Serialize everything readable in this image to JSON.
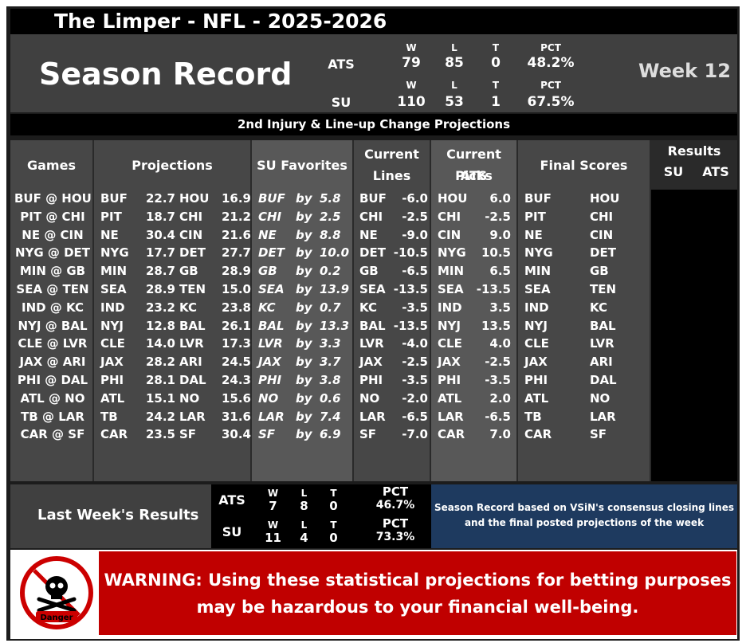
{
  "title": "The Limper - NFL - 2025-2026",
  "season": {
    "heading": "Season Record",
    "week": "Week 12",
    "ats": {
      "label": "ATS",
      "w_h": "W",
      "l_h": "L",
      "t_h": "T",
      "pct_h": "PCT",
      "w": "79",
      "l": "85",
      "t": "0",
      "pct": "48.2%"
    },
    "su": {
      "label": "SU",
      "w_h": "W",
      "l_h": "L",
      "t_h": "T",
      "pct_h": "PCT",
      "w": "110",
      "l": "53",
      "t": "1",
      "pct": "67.5%"
    }
  },
  "subtitle": "2nd Injury & Line-up Change Projections",
  "headers": {
    "games": "Games",
    "projections": "Projections",
    "su_favorites": "SU Favorites",
    "current_lines_1": "Current",
    "current_lines_2": "Lines",
    "ats_picks_1": "Current ATS",
    "ats_picks_2": "Picks",
    "final_scores": "Final Scores",
    "results": "Results",
    "results_su": "SU",
    "results_ats": "ATS"
  },
  "rows": [
    {
      "game": "BUF @ HOU",
      "p1": "BUF",
      "s1": "22.7",
      "p2": "HOU",
      "s2": "16.9",
      "fav": "BUF",
      "by": "by",
      "margin": "5.8",
      "line_team": "BUF",
      "line": "-6.0",
      "pick": "HOU",
      "pick_line": "6.0",
      "f1": "BUF",
      "f2": "HOU"
    },
    {
      "game": "PIT @ CHI",
      "p1": "PIT",
      "s1": "18.7",
      "p2": "CHI",
      "s2": "21.2",
      "fav": "CHI",
      "by": "by",
      "margin": "2.5",
      "line_team": "CHI",
      "line": "-2.5",
      "pick": "CHI",
      "pick_line": "-2.5",
      "f1": "PIT",
      "f2": "CHI"
    },
    {
      "game": "NE @ CIN",
      "p1": "NE",
      "s1": "30.4",
      "p2": "CIN",
      "s2": "21.6",
      "fav": "NE",
      "by": "by",
      "margin": "8.8",
      "line_team": "NE",
      "line": "-9.0",
      "pick": "CIN",
      "pick_line": "9.0",
      "f1": "NE",
      "f2": "CIN"
    },
    {
      "game": "NYG @ DET",
      "p1": "NYG",
      "s1": "17.7",
      "p2": "DET",
      "s2": "27.7",
      "fav": "DET",
      "by": "by",
      "margin": "10.0",
      "line_team": "DET",
      "line": "-10.5",
      "pick": "NYG",
      "pick_line": "10.5",
      "f1": "NYG",
      "f2": "DET"
    },
    {
      "game": "MIN @ GB",
      "p1": "MIN",
      "s1": "28.7",
      "p2": "GB",
      "s2": "28.9",
      "fav": "GB",
      "by": "by",
      "margin": "0.2",
      "line_team": "GB",
      "line": "-6.5",
      "pick": "MIN",
      "pick_line": "6.5",
      "f1": "MIN",
      "f2": "GB"
    },
    {
      "game": "SEA @ TEN",
      "p1": "SEA",
      "s1": "28.9",
      "p2": "TEN",
      "s2": "15.0",
      "fav": "SEA",
      "by": "by",
      "margin": "13.9",
      "line_team": "SEA",
      "line": "-13.5",
      "pick": "SEA",
      "pick_line": "-13.5",
      "f1": "SEA",
      "f2": "TEN"
    },
    {
      "game": "IND @ KC",
      "p1": "IND",
      "s1": "23.2",
      "p2": "KC",
      "s2": "23.8",
      "fav": "KC",
      "by": "by",
      "margin": "0.7",
      "line_team": "KC",
      "line": "-3.5",
      "pick": "IND",
      "pick_line": "3.5",
      "f1": "IND",
      "f2": "KC"
    },
    {
      "game": "NYJ @ BAL",
      "p1": "NYJ",
      "s1": "12.8",
      "p2": "BAL",
      "s2": "26.1",
      "fav": "BAL",
      "by": "by",
      "margin": "13.3",
      "line_team": "BAL",
      "line": "-13.5",
      "pick": "NYJ",
      "pick_line": "13.5",
      "f1": "NYJ",
      "f2": "BAL"
    },
    {
      "game": "CLE @ LVR",
      "p1": "CLE",
      "s1": "14.0",
      "p2": "LVR",
      "s2": "17.3",
      "fav": "LVR",
      "by": "by",
      "margin": "3.3",
      "line_team": "LVR",
      "line": "-4.0",
      "pick": "CLE",
      "pick_line": "4.0",
      "f1": "CLE",
      "f2": "LVR"
    },
    {
      "game": "JAX @ ARI",
      "p1": "JAX",
      "s1": "28.2",
      "p2": "ARI",
      "s2": "24.5",
      "fav": "JAX",
      "by": "by",
      "margin": "3.7",
      "line_team": "JAX",
      "line": "-2.5",
      "pick": "JAX",
      "pick_line": "-2.5",
      "f1": "JAX",
      "f2": "ARI"
    },
    {
      "game": "PHI @ DAL",
      "p1": "PHI",
      "s1": "28.1",
      "p2": "DAL",
      "s2": "24.3",
      "fav": "PHI",
      "by": "by",
      "margin": "3.8",
      "line_team": "PHI",
      "line": "-3.5",
      "pick": "PHI",
      "pick_line": "-3.5",
      "f1": "PHI",
      "f2": "DAL"
    },
    {
      "game": "ATL @ NO",
      "p1": "ATL",
      "s1": "15.1",
      "p2": "NO",
      "s2": "15.6",
      "fav": "NO",
      "by": "by",
      "margin": "0.6",
      "line_team": "NO",
      "line": "-2.0",
      "pick": "ATL",
      "pick_line": "2.0",
      "f1": "ATL",
      "f2": "NO"
    },
    {
      "game": "TB @ LAR",
      "p1": "TB",
      "s1": "24.2",
      "p2": "LAR",
      "s2": "31.6",
      "fav": "LAR",
      "by": "by",
      "margin": "7.4",
      "line_team": "LAR",
      "line": "-6.5",
      "pick": "LAR",
      "pick_line": "-6.5",
      "f1": "TB",
      "f2": "LAR"
    },
    {
      "game": "CAR @ SF",
      "p1": "CAR",
      "s1": "23.5",
      "p2": "SF",
      "s2": "30.4",
      "fav": "SF",
      "by": "by",
      "margin": "6.9",
      "line_team": "SF",
      "line": "-7.0",
      "pick": "CAR",
      "pick_line": "7.0",
      "f1": "CAR",
      "f2": "SF"
    }
  ],
  "last_week": {
    "label": "Last Week's Results",
    "ats": {
      "label": "ATS",
      "w_h": "W",
      "l_h": "L",
      "t_h": "T",
      "pct_h": "PCT",
      "w": "7",
      "l": "8",
      "t": "0",
      "pct": "46.7%"
    },
    "su": {
      "label": "SU",
      "w_h": "W",
      "l_h": "L",
      "t_h": "T",
      "pct_h": "PCT",
      "w": "11",
      "l": "4",
      "t": "0",
      "pct": "73.3%"
    }
  },
  "note": "Season Record based on VSiN's consensus closing lines and the final posted projections of the week",
  "warning": "WARNING: Using these statistical projections for betting purposes may be hazardous to your financial well-being.",
  "danger_label": "Danger",
  "colors": {
    "warning_bg": "#c00000",
    "note_bg": "#1e3a5f",
    "panel_bg": "#404040"
  }
}
